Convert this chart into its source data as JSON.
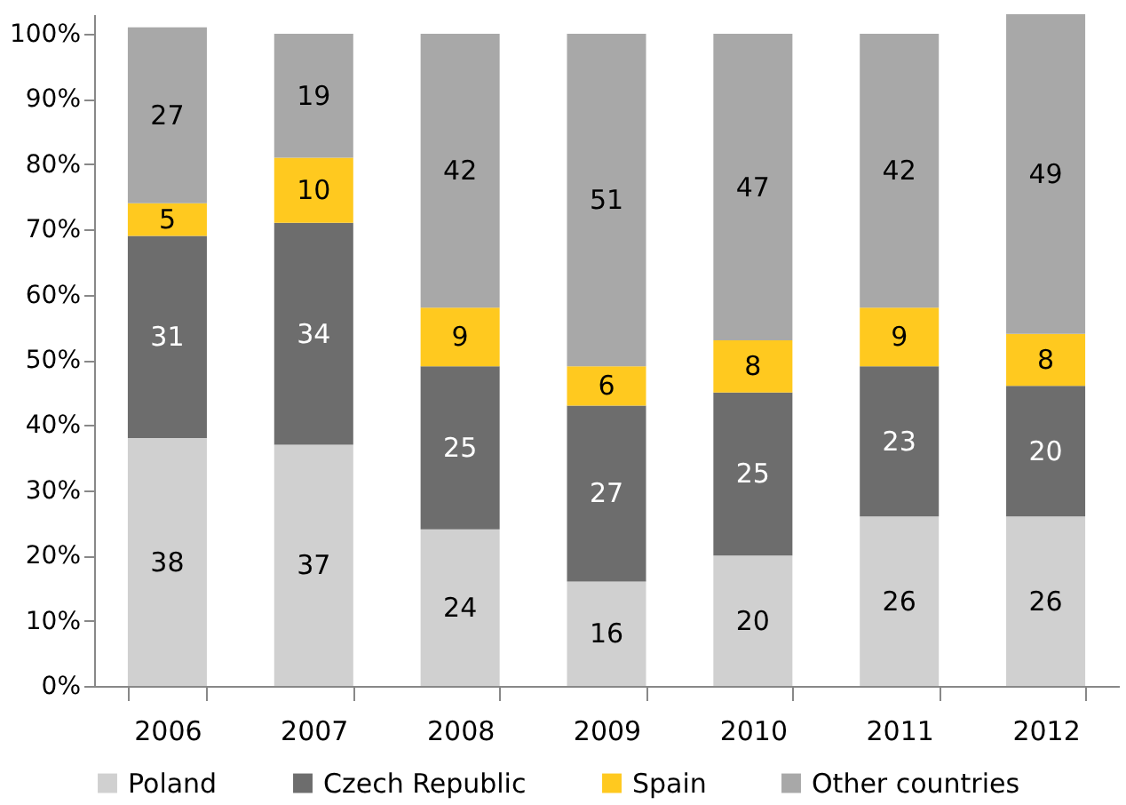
{
  "chart_data": {
    "type": "bar",
    "stacked": true,
    "categories": [
      "2006",
      "2007",
      "2008",
      "2009",
      "2010",
      "2011",
      "2012"
    ],
    "series": [
      {
        "name": "Poland",
        "color": "#d0d0d0",
        "values": [
          38,
          37,
          24,
          16,
          20,
          26,
          26
        ]
      },
      {
        "name": "Czech Republic",
        "color": "#6d6d6d",
        "values": [
          31,
          34,
          25,
          27,
          25,
          23,
          20
        ]
      },
      {
        "name": "Spain",
        "color": "#ffc91f",
        "values": [
          5,
          10,
          9,
          6,
          8,
          9,
          8
        ]
      },
      {
        "name": "Other countries",
        "color": "#a8a8a8",
        "values": [
          27,
          19,
          42,
          51,
          47,
          42,
          49
        ]
      }
    ],
    "ylim": [
      0,
      103
    ],
    "yticks": [
      {
        "value": 0,
        "label": "0%"
      },
      {
        "value": 10,
        "label": "10%"
      },
      {
        "value": 20,
        "label": "20%"
      },
      {
        "value": 30,
        "label": "30%"
      },
      {
        "value": 40,
        "label": "40%"
      },
      {
        "value": 50,
        "label": "50%"
      },
      {
        "value": 60,
        "label": "60%"
      },
      {
        "value": 70,
        "label": "70%"
      },
      {
        "value": 80,
        "label": "80%"
      },
      {
        "value": 90,
        "label": "90%"
      },
      {
        "value": 100,
        "label": "100%"
      }
    ],
    "data_labels": true,
    "legend": "bottom",
    "grid": false
  }
}
